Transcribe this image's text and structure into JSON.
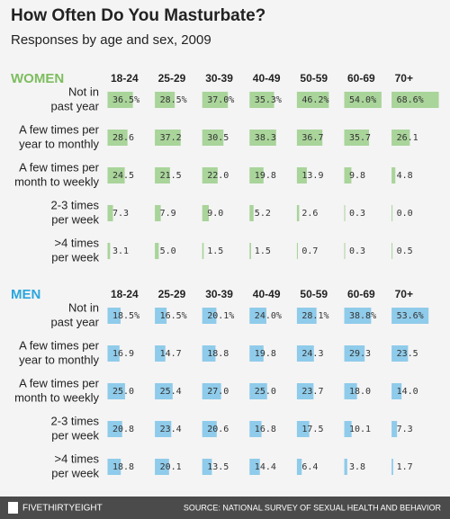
{
  "chart_data": {
    "type": "table-bar",
    "title": "How Often Do You Masturbate?",
    "subtitle": "Responses by age and sex, 2009",
    "categories": [
      "18-24",
      "25-29",
      "30-39",
      "40-49",
      "50-59",
      "60-69",
      "70+"
    ],
    "xlim": [
      0,
      70
    ],
    "panels": [
      {
        "name": "WOMEN",
        "color": "#a9d49a",
        "label_color": "#7dbd5f",
        "series": [
          {
            "name": [
              "Not in",
              "past year"
            ],
            "values": [
              36.5,
              28.5,
              37.0,
              35.3,
              46.2,
              54.0,
              68.6
            ],
            "value_labels": [
              "36.5%",
              "28.5%",
              "37.0%",
              "35.3%",
              "46.2%",
              "54.0%",
              "68.6%"
            ]
          },
          {
            "name": [
              "A few times per",
              "year to monthly"
            ],
            "values": [
              28.6,
              37.2,
              30.5,
              38.3,
              36.7,
              35.7,
              26.1
            ],
            "value_labels": [
              "28.6",
              "37.2",
              "30.5",
              "38.3",
              "36.7",
              "35.7",
              "26.1"
            ]
          },
          {
            "name": [
              "A few times per",
              "month to weekly"
            ],
            "values": [
              24.5,
              21.5,
              22.0,
              19.8,
              13.9,
              9.8,
              4.8
            ],
            "value_labels": [
              "24.5",
              "21.5",
              "22.0",
              "19.8",
              "13.9",
              "9.8",
              "4.8"
            ]
          },
          {
            "name": [
              "2-3 times",
              "per week"
            ],
            "values": [
              7.3,
              7.9,
              9.0,
              5.2,
              2.6,
              0.3,
              0.0
            ],
            "value_labels": [
              "7.3",
              "7.9",
              "9.0",
              "5.2",
              "2.6",
              "0.3",
              "0.0"
            ]
          },
          {
            "name": [
              ">4 times",
              "per week"
            ],
            "values": [
              3.1,
              5.0,
              1.5,
              1.5,
              0.7,
              0.3,
              0.5
            ],
            "value_labels": [
              "3.1",
              "5.0",
              "1.5",
              "1.5",
              "0.7",
              "0.3",
              "0.5"
            ]
          }
        ]
      },
      {
        "name": "MEN",
        "color": "#8fcbea",
        "label_color": "#2ba6de",
        "series": [
          {
            "name": [
              "Not in",
              "past year"
            ],
            "values": [
              18.5,
              16.5,
              20.1,
              24.0,
              28.1,
              38.8,
              53.6
            ],
            "value_labels": [
              "18.5%",
              "16.5%",
              "20.1%",
              "24.0%",
              "28.1%",
              "38.8%",
              "53.6%"
            ]
          },
          {
            "name": [
              "A few times per",
              "year to monthly"
            ],
            "values": [
              16.9,
              14.7,
              18.8,
              19.8,
              24.3,
              29.3,
              23.5
            ],
            "value_labels": [
              "16.9",
              "14.7",
              "18.8",
              "19.8",
              "24.3",
              "29.3",
              "23.5"
            ]
          },
          {
            "name": [
              "A few times per",
              "month to weekly"
            ],
            "values": [
              25.0,
              25.4,
              27.0,
              25.0,
              23.7,
              18.0,
              14.0
            ],
            "value_labels": [
              "25.0",
              "25.4",
              "27.0",
              "25.0",
              "23.7",
              "18.0",
              "14.0"
            ]
          },
          {
            "name": [
              "2-3 times",
              "per week"
            ],
            "values": [
              20.8,
              23.4,
              20.6,
              16.8,
              17.5,
              10.1,
              7.3
            ],
            "value_labels": [
              "20.8",
              "23.4",
              "20.6",
              "16.8",
              "17.5",
              "10.1",
              "7.3"
            ]
          },
          {
            "name": [
              ">4 times",
              "per week"
            ],
            "values": [
              18.8,
              20.1,
              13.5,
              14.4,
              6.4,
              3.8,
              1.7
            ],
            "value_labels": [
              "18.8",
              "20.1",
              "13.5",
              "14.4",
              "6.4",
              "3.8",
              "1.7"
            ]
          }
        ]
      }
    ],
    "brand": "FIVETHIRTYEIGHT",
    "source": "SOURCE: NATIONAL SURVEY OF SEXUAL HEALTH AND BEHAVIOR"
  }
}
